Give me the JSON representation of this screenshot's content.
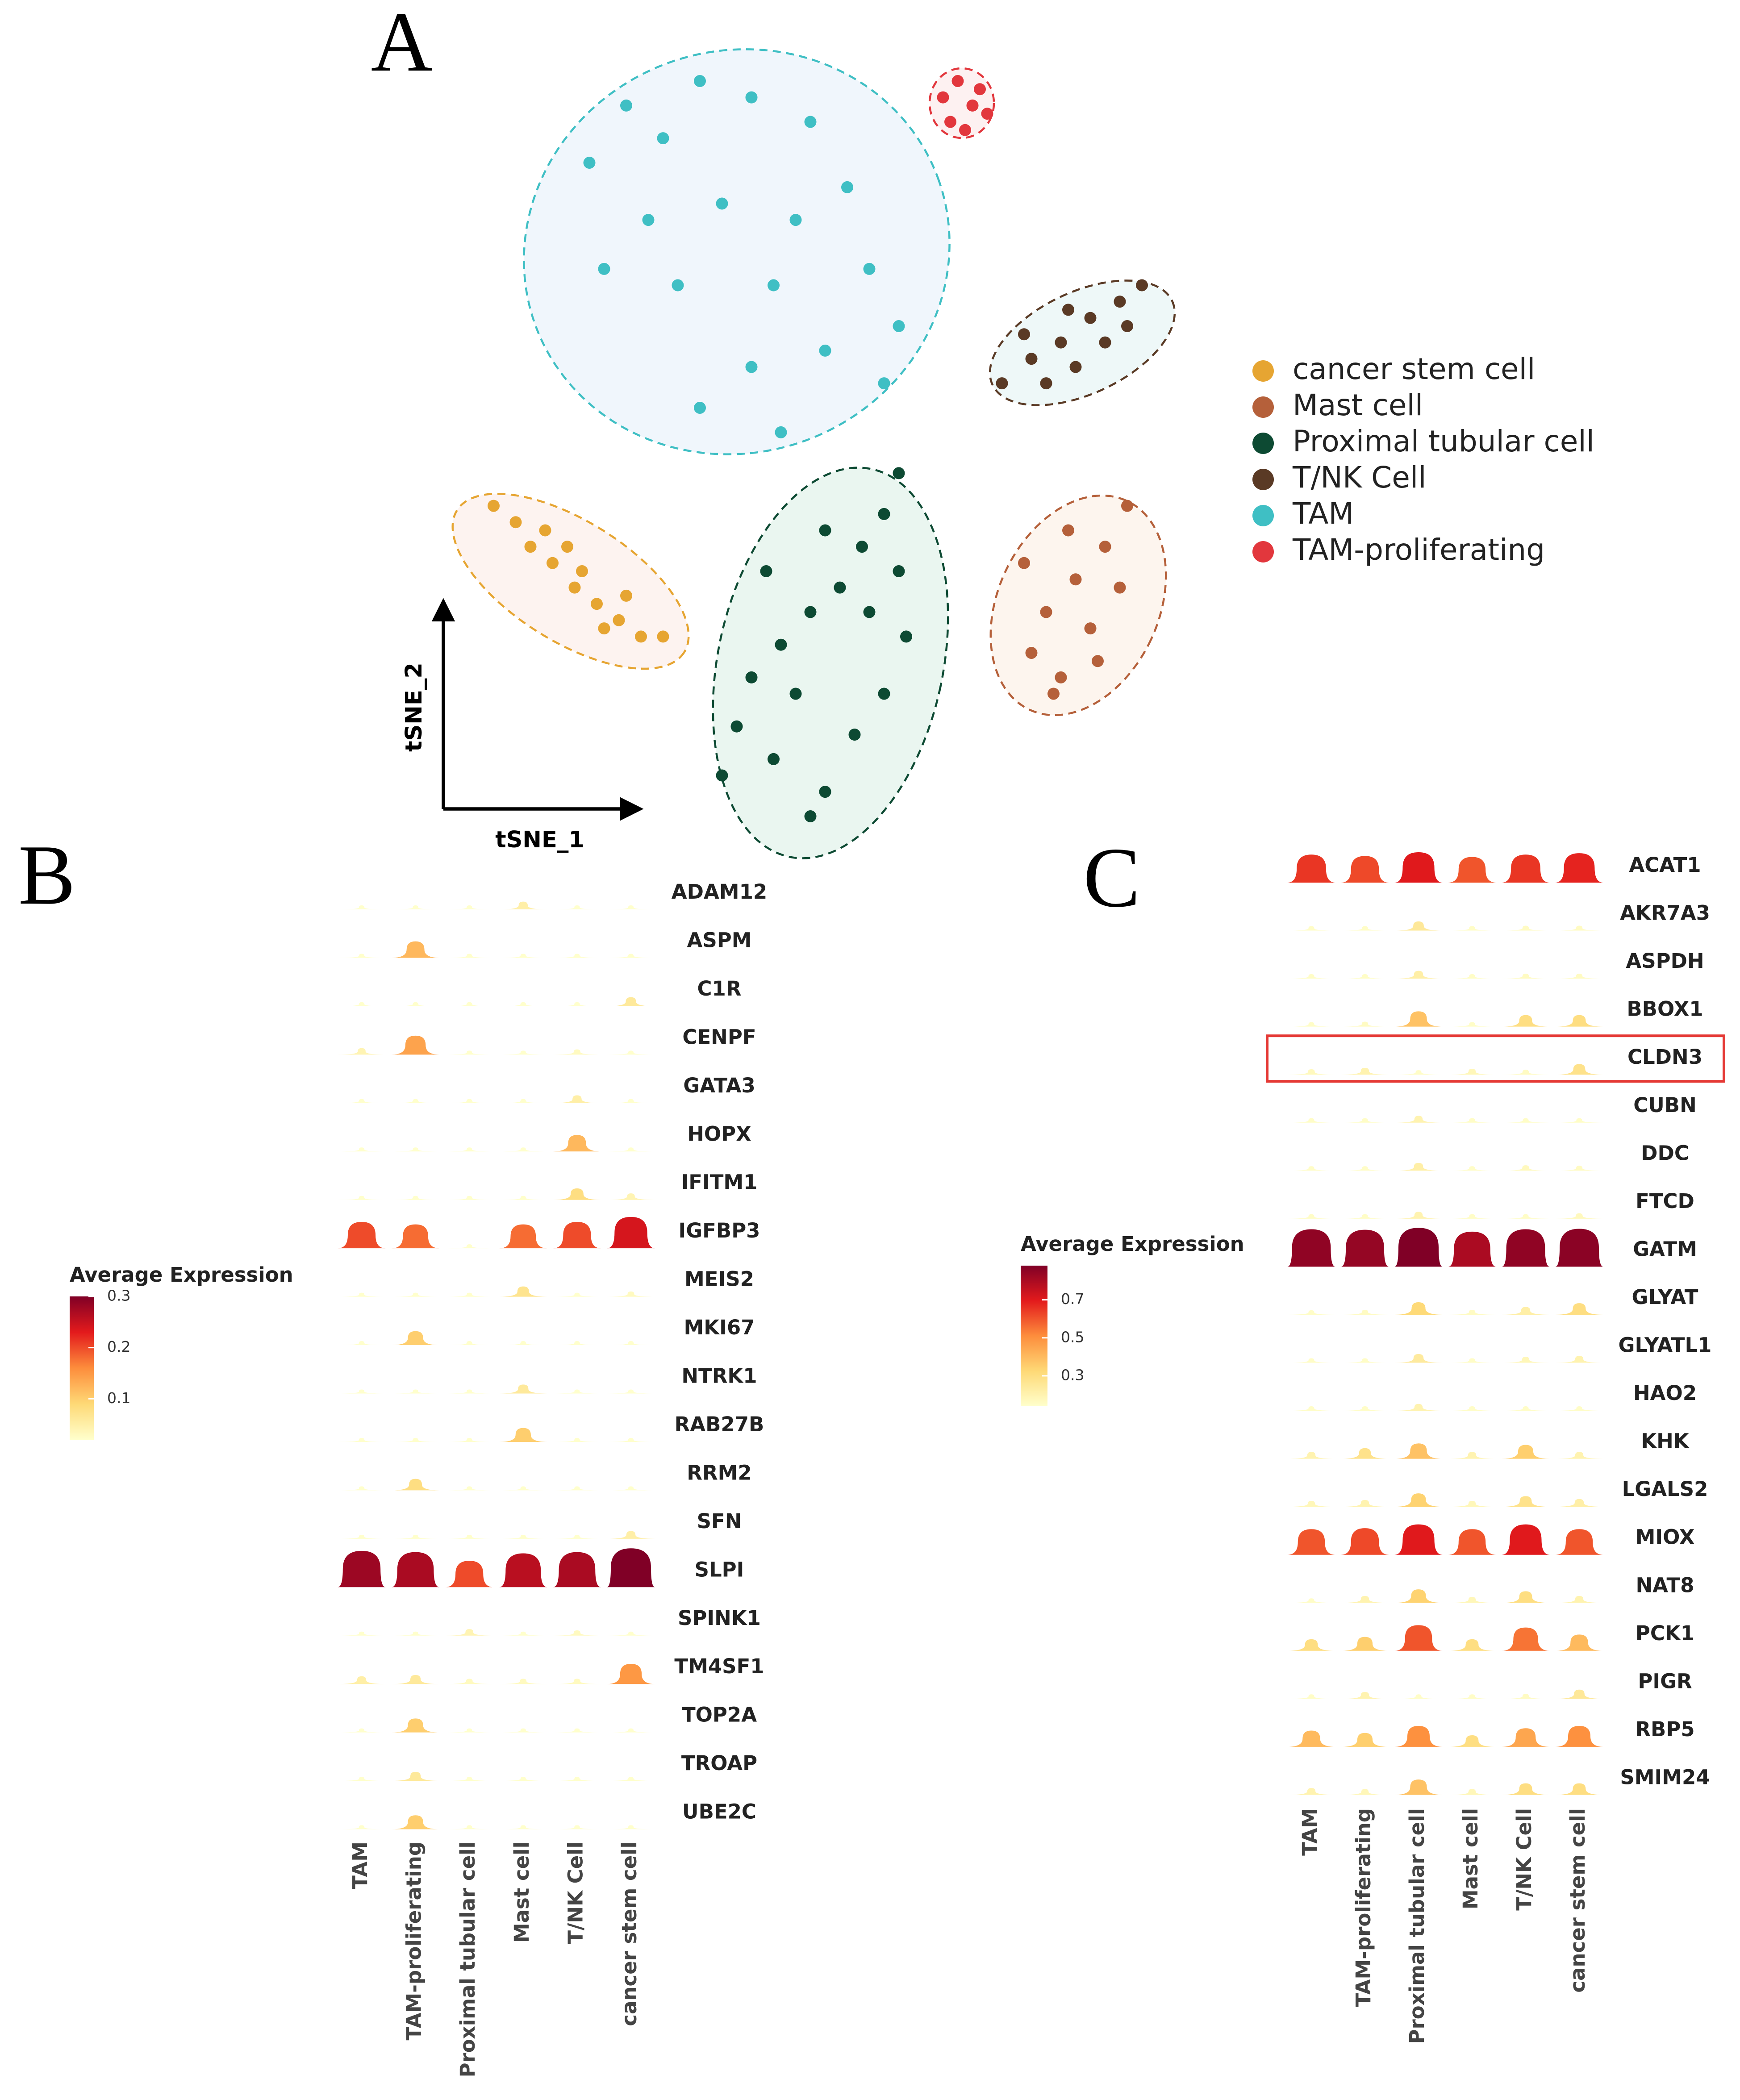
{
  "chart_data": [
    {
      "type": "scatter",
      "panel": "A",
      "xlabel": "tSNE_1",
      "ylabel": "tSNE_2",
      "series": [
        {
          "name": "cancer stem cell",
          "color": "#e6a532",
          "x": [
            7,
            10,
            12,
            15,
            18,
            21,
            24,
            27,
            30,
            14,
            19,
            25,
            22,
            17
          ],
          "y": [
            43,
            41,
            38,
            36,
            33,
            31,
            29,
            27,
            27,
            40,
            35,
            32,
            28,
            38
          ]
        },
        {
          "name": "Mast cell",
          "color": "#b5603a",
          "x": [
            93,
            90,
            86,
            82,
            80,
            84,
            88,
            92,
            79,
            85,
            83,
            89
          ],
          "y": [
            43,
            38,
            34,
            30,
            25,
            22,
            28,
            33,
            36,
            40,
            20,
            24
          ]
        },
        {
          "name": "Proximal tubular cell",
          "color": "#0d4a33",
          "x": [
            62,
            60,
            57,
            54,
            50,
            46,
            42,
            40,
            38,
            45,
            52,
            56,
            60,
            63,
            58,
            48,
            44,
            52,
            50,
            62
          ],
          "y": [
            47,
            42,
            38,
            33,
            30,
            26,
            22,
            16,
            10,
            12,
            8,
            15,
            20,
            27,
            30,
            20,
            35,
            40,
            5,
            35
          ]
        },
        {
          "name": "T/NK Cell",
          "color": "#5a3a25",
          "x": [
            76,
            80,
            84,
            88,
            92,
            95,
            82,
            86,
            90,
            79,
            85,
            93
          ],
          "y": [
            58,
            61,
            63,
            66,
            68,
            70,
            58,
            60,
            63,
            64,
            67,
            65
          ]
        },
        {
          "name": "TAM",
          "color": "#3fbfc4",
          "x": [
            20,
            25,
            30,
            35,
            42,
            50,
            55,
            48,
            38,
            28,
            22,
            32,
            45,
            58,
            62,
            52,
            42,
            35,
            46,
            60
          ],
          "y": [
            85,
            92,
            88,
            95,
            93,
            90,
            82,
            78,
            80,
            78,
            72,
            70,
            70,
            72,
            65,
            62,
            60,
            55,
            52,
            58
          ]
        },
        {
          "name": "TAM-proliferating",
          "color": "#e2373d",
          "x": [
            68,
            70,
            72,
            69,
            73,
            71,
            74
          ],
          "y": [
            93,
            95,
            92,
            90,
            94,
            89,
            91
          ]
        }
      ]
    },
    {
      "type": "violin",
      "panel": "B",
      "colorbar_title": "Average Expression",
      "clim": [
        0.02,
        0.3
      ],
      "cticks": [
        0.1,
        0.2,
        0.3
      ],
      "colorscale": [
        "#ffffcc",
        "#fed976",
        "#fd8d3c",
        "#e31a1c",
        "#800026"
      ],
      "categories": [
        "ADAM12",
        "ASPM",
        "C1R",
        "CENPF",
        "GATA3",
        "HOPX",
        "IFITM1",
        "IGFBP3",
        "MEIS2",
        "MKI67",
        "NTRK1",
        "RAB27B",
        "RRM2",
        "SFN",
        "SLPI",
        "SPINK1",
        "TM4SF1",
        "TOP2A",
        "TROAP",
        "UBE2C"
      ],
      "series": [
        {
          "name": "TAM",
          "values": [
            0.01,
            0.01,
            0.01,
            0.04,
            0.01,
            0.01,
            0.01,
            0.2,
            0.01,
            0.01,
            0.01,
            0.01,
            0.01,
            0.01,
            0.28,
            0.01,
            0.05,
            0.01,
            0.01,
            0.01
          ]
        },
        {
          "name": "TAM-proliferating",
          "values": [
            0.01,
            0.12,
            0.01,
            0.14,
            0.01,
            0.01,
            0.01,
            0.18,
            0.01,
            0.1,
            0.01,
            0.01,
            0.08,
            0.01,
            0.27,
            0.01,
            0.06,
            0.1,
            0.06,
            0.1
          ]
        },
        {
          "name": "Proximal tubular cell",
          "values": [
            0.01,
            0.01,
            0.01,
            0.01,
            0.01,
            0.01,
            0.01,
            0.02,
            0.01,
            0.01,
            0.01,
            0.01,
            0.01,
            0.01,
            0.2,
            0.04,
            0.03,
            0.01,
            0.01,
            0.01
          ]
        },
        {
          "name": "Mast cell",
          "values": [
            0.05,
            0.01,
            0.02,
            0.02,
            0.01,
            0.01,
            0.02,
            0.18,
            0.07,
            0.01,
            0.06,
            0.1,
            0.01,
            0.01,
            0.26,
            0.01,
            0.03,
            0.01,
            0.01,
            0.01
          ]
        },
        {
          "name": "T/NK Cell",
          "values": [
            0.02,
            0.01,
            0.01,
            0.03,
            0.05,
            0.12,
            0.08,
            0.2,
            0.01,
            0.01,
            0.01,
            0.02,
            0.01,
            0.01,
            0.27,
            0.03,
            0.03,
            0.01,
            0.01,
            0.01
          ]
        },
        {
          "name": "cancer stem cell",
          "values": [
            0.02,
            0.01,
            0.06,
            0.02,
            0.01,
            0.01,
            0.04,
            0.24,
            0.03,
            0.01,
            0.01,
            0.01,
            0.01,
            0.05,
            0.3,
            0.01,
            0.15,
            0.01,
            0.01,
            0.01
          ]
        }
      ]
    },
    {
      "type": "violin",
      "panel": "C",
      "colorbar_title": "Average Expression",
      "clim": [
        0.14,
        0.88
      ],
      "cticks": [
        0.3,
        0.5,
        0.7
      ],
      "highlight": "CLDN3",
      "colorscale": [
        "#ffffcc",
        "#fed976",
        "#fd8d3c",
        "#e31a1c",
        "#800026"
      ],
      "categories": [
        "ACAT1",
        "AKR7A3",
        "ASPDH",
        "BBOX1",
        "CLDN3",
        "CUBN",
        "DDC",
        "FTCD",
        "GATM",
        "GLYAT",
        "GLYATL1",
        "HAO2",
        "KHK",
        "LGALS2",
        "MIOX",
        "NAT8",
        "PCK1",
        "PIGR",
        "RBP5",
        "SMIM24"
      ],
      "series": [
        {
          "name": "TAM",
          "values": [
            0.65,
            0.15,
            0.15,
            0.15,
            0.17,
            0.15,
            0.15,
            0.15,
            0.85,
            0.15,
            0.15,
            0.15,
            0.2,
            0.18,
            0.6,
            0.15,
            0.3,
            0.15,
            0.4,
            0.2
          ]
        },
        {
          "name": "TAM-proliferating",
          "values": [
            0.62,
            0.15,
            0.15,
            0.16,
            0.2,
            0.15,
            0.15,
            0.15,
            0.84,
            0.16,
            0.15,
            0.15,
            0.28,
            0.2,
            0.62,
            0.2,
            0.35,
            0.2,
            0.35,
            0.18
          ]
        },
        {
          "name": "Proximal tubular cell",
          "values": [
            0.7,
            0.25,
            0.22,
            0.38,
            0.15,
            0.2,
            0.22,
            0.2,
            0.88,
            0.32,
            0.24,
            0.2,
            0.38,
            0.34,
            0.7,
            0.34,
            0.6,
            0.15,
            0.5,
            0.38
          ]
        },
        {
          "name": "Mast cell",
          "values": [
            0.6,
            0.15,
            0.15,
            0.15,
            0.18,
            0.15,
            0.15,
            0.15,
            0.8,
            0.16,
            0.15,
            0.15,
            0.2,
            0.18,
            0.6,
            0.18,
            0.3,
            0.15,
            0.3,
            0.18
          ]
        },
        {
          "name": "T/NK Cell",
          "values": [
            0.65,
            0.16,
            0.16,
            0.3,
            0.16,
            0.15,
            0.17,
            0.15,
            0.85,
            0.22,
            0.18,
            0.15,
            0.35,
            0.28,
            0.7,
            0.3,
            0.55,
            0.16,
            0.45,
            0.3
          ]
        },
        {
          "name": "cancer stem cell",
          "values": [
            0.68,
            0.16,
            0.16,
            0.3,
            0.28,
            0.15,
            0.16,
            0.17,
            0.86,
            0.3,
            0.2,
            0.15,
            0.2,
            0.22,
            0.6,
            0.2,
            0.4,
            0.25,
            0.5,
            0.3
          ]
        }
      ]
    }
  ]
}
